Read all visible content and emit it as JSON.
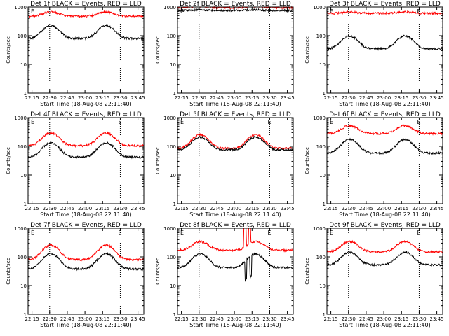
{
  "chart_data": [
    {
      "type": "line",
      "title": "Det 1f BLACK = Events, RED = LLD",
      "ylabel": "Counts/sec",
      "xlabel": "Start Time (18-Aug-08 22:11:40)",
      "log_y": true,
      "ylim": [
        1,
        1000
      ],
      "y_ticks": [
        "1",
        "10",
        "100",
        "1000"
      ],
      "x_ticks": [
        "22:15",
        "22:30",
        "22:45",
        "23:00",
        "23:15",
        "23:30",
        "23:45"
      ],
      "markers": [
        "E",
        "E"
      ],
      "series": [
        {
          "color": "#ff0000",
          "base": 480,
          "amp": 1.4
        },
        {
          "color": "#000000",
          "base": 80,
          "amp": 2.8
        }
      ]
    },
    {
      "type": "line",
      "title": "Det 2f BLACK = Events, RED = LLD",
      "ylabel": "Counts/sec",
      "xlabel": "Start Time (18-Aug-08 22:11:40)",
      "log_y": true,
      "ylim": [
        1,
        1000
      ],
      "y_ticks": [
        "1",
        "10",
        "100",
        "1000"
      ],
      "x_ticks": [
        "22:15",
        "22:30",
        "22:45",
        "23:00",
        "23:15",
        "23:30",
        "23:45"
      ],
      "markers": [
        "E",
        "E"
      ],
      "series": [
        {
          "color": "#ff0000",
          "base": 950,
          "amp": 1.12
        },
        {
          "color": "#000000",
          "base": 750,
          "amp": 1.06
        }
      ]
    },
    {
      "type": "line",
      "title": "Det 3f BLACK = Events, RED = LLD",
      "ylabel": "Counts/sec",
      "xlabel": "Start Time (18-Aug-08 22:11:40)",
      "log_y": true,
      "ylim": [
        1,
        1000
      ],
      "y_ticks": [
        "1",
        "10",
        "100",
        "1000"
      ],
      "x_ticks": [
        "22:15",
        "22:30",
        "22:45",
        "23:00",
        "23:15",
        "23:30",
        "23:45"
      ],
      "markers": [
        "E",
        "E"
      ],
      "series": [
        {
          "color": "#ff0000",
          "base": 600,
          "amp": 1.12
        },
        {
          "color": "#000000",
          "base": 35,
          "amp": 2.8
        }
      ]
    },
    {
      "type": "line",
      "title": "Det 4f BLACK = Events, RED = LLD",
      "ylabel": "Counts/sec",
      "xlabel": "Start Time (18-Aug-08 22:11:40)",
      "log_y": true,
      "ylim": [
        1,
        1000
      ],
      "y_ticks": [
        "1",
        "10",
        "100",
        "1000"
      ],
      "x_ticks": [
        "22:15",
        "22:30",
        "22:45",
        "23:00",
        "23:15",
        "23:30",
        "23:45"
      ],
      "markers": [
        "E",
        "E"
      ],
      "series": [
        {
          "color": "#ff0000",
          "base": 105,
          "amp": 2.8
        },
        {
          "color": "#000000",
          "base": 42,
          "amp": 3.2
        }
      ]
    },
    {
      "type": "line",
      "title": "Det 5f BLACK = Events, RED = LLD",
      "ylabel": "Counts/sec",
      "xlabel": "Start Time (18-Aug-08 22:11:40)",
      "log_y": true,
      "ylim": [
        1,
        1000
      ],
      "y_ticks": [
        "1",
        "10",
        "100",
        "1000"
      ],
      "x_ticks": [
        "22:15",
        "22:30",
        "22:45",
        "23:00",
        "23:15",
        "23:30",
        "23:45"
      ],
      "markers": [
        "E",
        "E"
      ],
      "series": [
        {
          "color": "#ff0000",
          "base": 85,
          "amp": 3.0
        },
        {
          "color": "#000000",
          "base": 75,
          "amp": 2.8
        }
      ]
    },
    {
      "type": "line",
      "title": "Det 6f BLACK = Events, RED = LLD",
      "ylabel": "Counts/sec",
      "xlabel": "Start Time (18-Aug-08 22:11:40)",
      "log_y": true,
      "ylim": [
        1,
        1000
      ],
      "y_ticks": [
        "1",
        "10",
        "100",
        "1000"
      ],
      "x_ticks": [
        "22:15",
        "22:30",
        "22:45",
        "23:00",
        "23:15",
        "23:30",
        "23:45"
      ],
      "markers": [
        "E",
        "E"
      ],
      "series": [
        {
          "color": "#ff0000",
          "base": 280,
          "amp": 1.9
        },
        {
          "color": "#000000",
          "base": 58,
          "amp": 3.0
        }
      ]
    },
    {
      "type": "line",
      "title": "Det 7f BLACK = Events, RED = LLD",
      "ylabel": "Counts/sec",
      "xlabel": "Start Time (18-Aug-08 22:11:40)",
      "log_y": true,
      "ylim": [
        1,
        1000
      ],
      "y_ticks": [
        "1",
        "10",
        "100",
        "1000"
      ],
      "x_ticks": [
        "22:15",
        "22:30",
        "22:45",
        "23:00",
        "23:15",
        "23:30",
        "23:45"
      ],
      "markers": [
        "E",
        "E"
      ],
      "series": [
        {
          "color": "#ff0000",
          "base": 80,
          "amp": 3.2
        },
        {
          "color": "#000000",
          "base": 38,
          "amp": 3.4
        }
      ]
    },
    {
      "type": "line",
      "title": "Det 8f BLACK = Events, RED = LLD",
      "ylabel": "Counts/sec",
      "xlabel": "Start Time (18-Aug-08 22:11:40)",
      "log_y": true,
      "ylim": [
        1,
        1000
      ],
      "y_ticks": [
        "1",
        "10",
        "100",
        "1000"
      ],
      "x_ticks": [
        "22:15",
        "22:30",
        "22:45",
        "23:00",
        "23:15",
        "23:30",
        "23:45"
      ],
      "markers": [
        "E",
        "E"
      ],
      "series": [
        {
          "color": "#ff0000",
          "base": 170,
          "amp": 2.0,
          "spike": true
        },
        {
          "color": "#000000",
          "base": 42,
          "amp": 3.0,
          "spike": true
        }
      ]
    },
    {
      "type": "line",
      "title": "Det 9f BLACK = Events, RED = LLD",
      "ylabel": "Counts/sec",
      "xlabel": "Start Time (18-Aug-08 22:11:40)",
      "log_y": true,
      "ylim": [
        1,
        1000
      ],
      "y_ticks": [
        "1",
        "10",
        "100",
        "1000"
      ],
      "x_ticks": [
        "22:15",
        "22:30",
        "22:45",
        "23:00",
        "23:15",
        "23:30",
        "23:45"
      ],
      "markers": [
        "E",
        "E"
      ],
      "series": [
        {
          "color": "#ff0000",
          "base": 150,
          "amp": 2.3
        },
        {
          "color": "#000000",
          "base": 52,
          "amp": 2.8
        }
      ]
    }
  ]
}
